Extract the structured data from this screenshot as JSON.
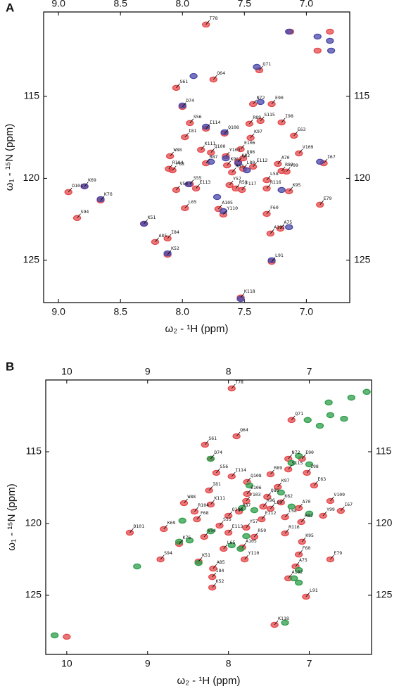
{
  "chart_data": [
    {
      "type": "scatter",
      "panel": "A",
      "xlabel": "ω₂ - ¹H (ppm)",
      "ylabel": "ω₁ - ¹⁵N (ppm)",
      "xlim": [
        9.12,
        6.65
      ],
      "ylim": [
        127.58,
        109.85
      ],
      "xticks": [
        {
          "value": 9,
          "label": "9.0"
        },
        8.5,
        {
          "value": 8,
          "label": "8.0"
        },
        7.5,
        {
          "value": 7,
          "label": "7.0"
        }
      ],
      "yticks": [
        115,
        120,
        125
      ],
      "series": [
        {
          "color": "#e5484b",
          "x": [
            7.81,
            7.38,
            7.75,
            8.05,
            7.43,
            7.28,
            8.0,
            7.81,
            7.94,
            7.46,
            7.37,
            7.2,
            7.66,
            7.1,
            7.98,
            7.45,
            8.1,
            7.85,
            7.77,
            7.65,
            7.53,
            7.51,
            7.55,
            7.06,
            7.23,
            7.43,
            7.81,
            7.64,
            7.51,
            8.11,
            8.08,
            7.6,
            7.16,
            6.86,
            7.94,
            7.62,
            7.32,
            7.2,
            8.79,
            8.92,
            8.05,
            7.89,
            7.57,
            7.52,
            8.66,
            7.14,
            7.32,
            7.98,
            7.71,
            6.89,
            7.32,
            7.67,
            8.85,
            8.31,
            7.29,
            7.21,
            8.12,
            8.22,
            8.12,
            7.28,
            7.53,
            7.13,
            6.81,
            6.91
          ],
          "values": [
            110.62,
            113.41,
            113.97,
            114.48,
            115.47,
            115.47,
            115.64,
            116.97,
            116.63,
            116.67,
            116.5,
            116.59,
            117.27,
            117.4,
            117.49,
            117.53,
            118.65,
            118.26,
            118.43,
            118.65,
            118.22,
            118.78,
            118.99,
            118.48,
            119.12,
            119.29,
            119.08,
            119.21,
            119.42,
            119.42,
            119.51,
            119.64,
            119.59,
            119.08,
            120.36,
            120.41,
            120.11,
            119.55,
            120.49,
            120.84,
            120.71,
            120.62,
            120.62,
            120.71,
            121.35,
            120.79,
            120.62,
            121.82,
            121.87,
            121.61,
            122.17,
            122.21,
            122.42,
            122.77,
            123.37,
            123.07,
            123.67,
            123.88,
            124.66,
            125.09,
            127.27,
            111.05,
            111.05,
            112.21
          ]
        },
        {
          "color": "#4a48a8",
          "x": [
            7.4,
            7.14,
            6.91,
            6.81,
            6.8,
            7.91,
            7.37,
            8.0,
            7.81,
            7.66,
            7.65,
            7.77,
            7.55,
            7.48,
            7.95,
            7.72,
            7.67,
            8.66,
            7.2,
            6.89,
            7.14,
            8.12,
            7.53,
            7.28,
            8.31,
            8.79
          ],
          "values": [
            113.2,
            111.05,
            111.35,
            111.61,
            112.21,
            113.76,
            115.34,
            115.56,
            116.85,
            117.19,
            118.78,
            118.99,
            119.08,
            119.51,
            120.36,
            121.14,
            122.0,
            121.27,
            120.71,
            118.99,
            122.98,
            124.58,
            127.36,
            125.0,
            122.77,
            120.49
          ]
        }
      ],
      "annotations": [
        {
          "text": "T78",
          "x": 7.81,
          "y": 110.62
        },
        {
          "text": "Q71",
          "x": 7.38,
          "y": 113.41
        },
        {
          "text": "Q64",
          "x": 7.75,
          "y": 113.97
        },
        {
          "text": "S61",
          "x": 8.05,
          "y": 114.48
        },
        {
          "text": "N72",
          "x": 7.43,
          "y": 115.47
        },
        {
          "text": "E90",
          "x": 7.28,
          "y": 115.47
        },
        {
          "text": "D74",
          "x": 8.0,
          "y": 115.64
        },
        {
          "text": "I114",
          "x": 7.81,
          "y": 116.97
        },
        {
          "text": "S56",
          "x": 7.94,
          "y": 116.63
        },
        {
          "text": "R89",
          "x": 7.46,
          "y": 116.67
        },
        {
          "text": "S115",
          "x": 7.37,
          "y": 116.5
        },
        {
          "text": "I98",
          "x": 7.2,
          "y": 116.59
        },
        {
          "text": "Q108",
          "x": 7.66,
          "y": 117.27
        },
        {
          "text": "E63",
          "x": 7.1,
          "y": 117.4
        },
        {
          "text": "I81",
          "x": 7.98,
          "y": 117.49
        },
        {
          "text": "K97",
          "x": 7.45,
          "y": 117.53
        },
        {
          "text": "W88",
          "x": 8.1,
          "y": 118.65
        },
        {
          "text": "K111",
          "x": 7.85,
          "y": 118.26
        },
        {
          "text": "Q100",
          "x": 7.77,
          "y": 118.43
        },
        {
          "text": "Y103",
          "x": 7.65,
          "y": 118.65
        },
        {
          "text": "E106",
          "x": 7.53,
          "y": 118.22
        },
        {
          "text": "Q86",
          "x": 7.51,
          "y": 118.78
        },
        {
          "text": "K62",
          "x": 7.55,
          "y": 118.99
        },
        {
          "text": "V109",
          "x": 7.06,
          "y": 118.48
        },
        {
          "text": "A70",
          "x": 7.23,
          "y": 119.12
        },
        {
          "text": "E112",
          "x": 7.43,
          "y": 119.29
        },
        {
          "text": "R87",
          "x": 7.81,
          "y": 119.08
        },
        {
          "text": "K96",
          "x": 7.64,
          "y": 119.21
        },
        {
          "text": "L80",
          "x": 7.51,
          "y": 119.42
        },
        {
          "text": "R104",
          "x": 8.11,
          "y": 119.42
        },
        {
          "text": "F68",
          "x": 8.08,
          "y": 119.51
        },
        {
          "text": "R83",
          "x": 7.6,
          "y": 119.64
        },
        {
          "text": "Y99",
          "x": 7.16,
          "y": 119.59
        },
        {
          "text": "I67",
          "x": 6.86,
          "y": 119.08
        },
        {
          "text": "S55",
          "x": 7.94,
          "y": 120.36
        },
        {
          "text": "Y57",
          "x": 7.62,
          "y": 120.41
        },
        {
          "text": "L58",
          "x": 7.32,
          "y": 120.11
        },
        {
          "text": "R82",
          "x": 7.2,
          "y": 119.55
        },
        {
          "text": "K69",
          "x": 8.79,
          "y": 120.49
        },
        {
          "text": "D101",
          "x": 8.92,
          "y": 120.84
        },
        {
          "text": "V54",
          "x": 8.05,
          "y": 120.71
        },
        {
          "text": "E113",
          "x": 7.89,
          "y": 120.62
        },
        {
          "text": "R59",
          "x": 7.57,
          "y": 120.62
        },
        {
          "text": "F117",
          "x": 7.52,
          "y": 120.71
        },
        {
          "text": "K76",
          "x": 8.66,
          "y": 121.35
        },
        {
          "text": "K95",
          "x": 7.14,
          "y": 120.79
        },
        {
          "text": "R116",
          "x": 7.32,
          "y": 120.62
        },
        {
          "text": "L65",
          "x": 7.98,
          "y": 121.82
        },
        {
          "text": "A105",
          "x": 7.71,
          "y": 121.87
        },
        {
          "text": "E79",
          "x": 6.89,
          "y": 121.61
        },
        {
          "text": "F60",
          "x": 7.32,
          "y": 122.17
        },
        {
          "text": "Y110",
          "x": 7.67,
          "y": 122.21
        },
        {
          "text": "S94",
          "x": 8.85,
          "y": 122.42
        },
        {
          "text": "K51",
          "x": 8.31,
          "y": 122.77
        },
        {
          "text": "A102",
          "x": 7.29,
          "y": 123.37
        },
        {
          "text": "A75",
          "x": 7.21,
          "y": 123.07
        },
        {
          "text": "I84",
          "x": 8.12,
          "y": 123.67
        },
        {
          "text": "A85",
          "x": 8.22,
          "y": 123.88
        },
        {
          "text": "K52",
          "x": 8.12,
          "y": 124.66
        },
        {
          "text": "L91",
          "x": 7.28,
          "y": 125.09
        },
        {
          "text": "K118",
          "x": 7.53,
          "y": 127.27
        }
      ]
    },
    {
      "type": "scatter",
      "panel": "B",
      "xlabel": "ω₂ - ¹H (ppm)",
      "ylabel": "ω₁ - ¹⁵N (ppm)",
      "xlim": [
        10.26,
        6.23
      ],
      "ylim": [
        129.12,
        110.0
      ],
      "xticks": [
        10,
        9,
        8,
        7
      ],
      "yticks": [
        115,
        120,
        125
      ],
      "series": [
        {
          "color": "#e5484b",
          "x": [
            7.96,
            7.22,
            7.9,
            8.29,
            7.26,
            7.09,
            8.22,
            8.15,
            7.96,
            7.26,
            7.48,
            7.03,
            7.77,
            6.94,
            8.24,
            7.39,
            7.77,
            7.52,
            8.55,
            8.22,
            7.78,
            7.35,
            7.57,
            6.74,
            7.13,
            8.42,
            7.87,
            8.0,
            7.48,
            7.1,
            8.39,
            7.59,
            7.3,
            6.83,
            6.61,
            9.22,
            8.8,
            8.11,
            7.78,
            7.68,
            8.0,
            7.3,
            8.3,
            8.61,
            7.09,
            8.06,
            7.83,
            7.13,
            6.74,
            7.8,
            8.84,
            8.37,
            7.17,
            8.19,
            8.2,
            7.26,
            8.2,
            7.04,
            7.43,
            10.0
          ],
          "values": [
            110.59,
            112.79,
            113.92,
            114.51,
            115.49,
            115.49,
            115.49,
            116.47,
            116.72,
            116.23,
            116.57,
            116.47,
            117.11,
            117.35,
            117.7,
            117.45,
            117.94,
            118.14,
            118.58,
            118.68,
            118.43,
            118.53,
            118.82,
            118.43,
            118.92,
            119.17,
            119.17,
            119.46,
            118.97,
            119.9,
            119.71,
            119.71,
            119.56,
            119.46,
            119.12,
            120.64,
            120.39,
            120.15,
            120.29,
            120.93,
            120.64,
            120.69,
            120.93,
            121.42,
            121.27,
            121.76,
            121.67,
            122.16,
            122.5,
            122.5,
            122.5,
            122.65,
            122.99,
            123.14,
            123.73,
            123.82,
            124.46,
            125.1,
            127.06,
            127.89
          ]
        },
        {
          "color": "#2e9e4a",
          "x": [
            6.29,
            6.48,
            6.76,
            6.74,
            6.57,
            7.02,
            6.87,
            7.13,
            7.22,
            7.0,
            8.22,
            7.74,
            7.35,
            7.83,
            7.68,
            7.22,
            7.0,
            8.57,
            8.61,
            8.48,
            8.22,
            7.78,
            7.96,
            8.37,
            7.13,
            7.19,
            7.13,
            7.85,
            7.3,
            10.15,
            9.13
          ],
          "values": [
            110.83,
            111.23,
            111.57,
            112.45,
            112.7,
            112.79,
            113.19,
            115.29,
            115.78,
            115.88,
            115.49,
            117.35,
            117.84,
            118.92,
            119.07,
            118.82,
            119.31,
            119.8,
            121.27,
            121.18,
            120.54,
            120.88,
            121.52,
            122.75,
            123.24,
            123.82,
            124.12,
            121.76,
            126.91,
            127.79,
            122.99
          ]
        }
      ],
      "annotations": [
        {
          "text": "T78",
          "x": 7.96,
          "y": 110.59
        },
        {
          "text": "Q71",
          "x": 7.22,
          "y": 112.79
        },
        {
          "text": "Q64",
          "x": 7.9,
          "y": 113.92
        },
        {
          "text": "S61",
          "x": 8.29,
          "y": 114.51
        },
        {
          "text": "N72",
          "x": 7.26,
          "y": 115.49
        },
        {
          "text": "E90",
          "x": 7.09,
          "y": 115.49
        },
        {
          "text": "D74",
          "x": 8.22,
          "y": 115.49
        },
        {
          "text": "S56",
          "x": 8.15,
          "y": 116.47
        },
        {
          "text": "I114",
          "x": 7.96,
          "y": 116.72
        },
        {
          "text": "S115",
          "x": 7.26,
          "y": 116.23
        },
        {
          "text": "R89",
          "x": 7.48,
          "y": 116.57
        },
        {
          "text": "I98",
          "x": 7.03,
          "y": 116.47
        },
        {
          "text": "Q108",
          "x": 7.77,
          "y": 117.11
        },
        {
          "text": "E63",
          "x": 6.94,
          "y": 117.35
        },
        {
          "text": "I81",
          "x": 8.24,
          "y": 117.7
        },
        {
          "text": "K97",
          "x": 7.39,
          "y": 117.45
        },
        {
          "text": "E106",
          "x": 7.77,
          "y": 117.94
        },
        {
          "text": "Q86",
          "x": 7.52,
          "y": 118.14
        },
        {
          "text": "W88",
          "x": 8.55,
          "y": 118.58
        },
        {
          "text": "K111",
          "x": 8.22,
          "y": 118.68
        },
        {
          "text": "Y103",
          "x": 7.78,
          "y": 118.43
        },
        {
          "text": "K62",
          "x": 7.35,
          "y": 118.53
        },
        {
          "text": "K96",
          "x": 7.57,
          "y": 118.82
        },
        {
          "text": "V109",
          "x": 6.74,
          "y": 118.43
        },
        {
          "text": "A70",
          "x": 7.13,
          "y": 118.92
        },
        {
          "text": "R104",
          "x": 8.42,
          "y": 119.17
        },
        {
          "text": "R87",
          "x": 7.87,
          "y": 119.17
        },
        {
          "text": "Q100",
          "x": 8.0,
          "y": 119.46
        },
        {
          "text": "L80",
          "x": 7.48,
          "y": 118.97
        },
        {
          "text": "R82",
          "x": 7.1,
          "y": 119.9
        },
        {
          "text": "F68",
          "x": 8.39,
          "y": 119.71
        },
        {
          "text": "E112",
          "x": 7.59,
          "y": 119.71
        },
        {
          "text": "L58",
          "x": 7.3,
          "y": 119.56
        },
        {
          "text": "Y99",
          "x": 6.83,
          "y": 119.46
        },
        {
          "text": "I67",
          "x": 6.61,
          "y": 119.12
        },
        {
          "text": "D101",
          "x": 9.22,
          "y": 120.64
        },
        {
          "text": "K69",
          "x": 8.8,
          "y": 120.39
        },
        {
          "text": "S55",
          "x": 8.11,
          "y": 120.15
        },
        {
          "text": "Y57",
          "x": 7.78,
          "y": 120.29
        },
        {
          "text": "R59",
          "x": 7.68,
          "y": 120.93
        },
        {
          "text": "E113",
          "x": 8.0,
          "y": 120.64
        },
        {
          "text": "R116",
          "x": 7.3,
          "y": 120.69
        },
        {
          "text": "V54",
          "x": 8.3,
          "y": 120.93
        },
        {
          "text": "K76",
          "x": 8.61,
          "y": 121.42
        },
        {
          "text": "K95",
          "x": 7.09,
          "y": 121.27
        },
        {
          "text": "L65",
          "x": 8.06,
          "y": 121.76
        },
        {
          "text": "A105",
          "x": 7.83,
          "y": 121.67
        },
        {
          "text": "F60",
          "x": 7.13,
          "y": 122.16
        },
        {
          "text": "E79",
          "x": 6.74,
          "y": 122.5
        },
        {
          "text": "Y110",
          "x": 7.8,
          "y": 122.5
        },
        {
          "text": "S94",
          "x": 8.84,
          "y": 122.5
        },
        {
          "text": "K51",
          "x": 8.37,
          "y": 122.65
        },
        {
          "text": "A75",
          "x": 7.17,
          "y": 122.99
        },
        {
          "text": "A85",
          "x": 8.19,
          "y": 123.14
        },
        {
          "text": "I84",
          "x": 8.2,
          "y": 123.73
        },
        {
          "text": "A102",
          "x": 7.26,
          "y": 123.82
        },
        {
          "text": "K52",
          "x": 8.2,
          "y": 124.46
        },
        {
          "text": "L91",
          "x": 7.04,
          "y": 125.1
        },
        {
          "text": "K118",
          "x": 7.43,
          "y": 127.06
        }
      ]
    }
  ]
}
